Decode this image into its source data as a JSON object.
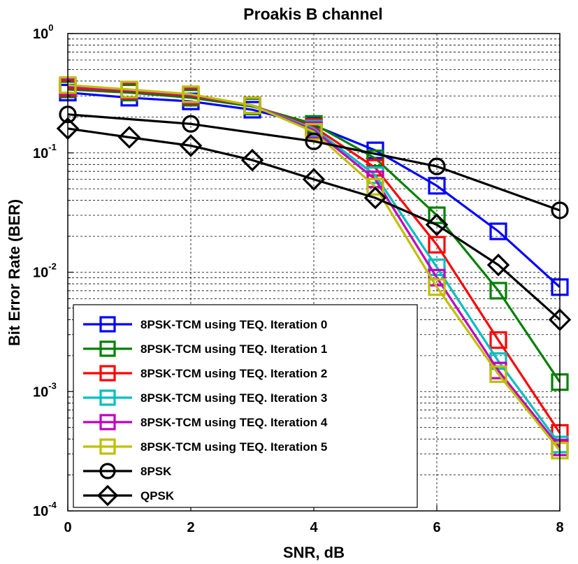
{
  "chart_data": {
    "type": "line",
    "title": "Proakis B channel",
    "xlabel": "SNR, dB",
    "ylabel": "Bit Error Rate (BER)",
    "xlim": [
      0,
      8
    ],
    "ylim": [
      0.0001,
      1
    ],
    "yscale": "log",
    "grid": true,
    "legend_position": "bottom-left",
    "x_ticks": [
      0,
      2,
      4,
      6,
      8
    ],
    "x_tick_labels": [
      "0",
      "2",
      "4",
      "6",
      "8"
    ],
    "y_ticks": [
      {
        "base": "10",
        "exp": "0",
        "value": 1
      },
      {
        "base": "10",
        "exp": "-1",
        "value": 0.1
      },
      {
        "base": "10",
        "exp": "-2",
        "value": 0.01
      },
      {
        "base": "10",
        "exp": "-3",
        "value": 0.001
      },
      {
        "base": "10",
        "exp": "-4",
        "value": 0.0001
      }
    ],
    "series": [
      {
        "name": "8PSK-TCM using TEQ. Iteration 0",
        "color": "#0000ff",
        "marker": "square",
        "x": [
          0,
          1,
          2,
          3,
          4,
          5,
          6,
          7,
          8
        ],
        "y": [
          0.32,
          0.29,
          0.27,
          0.23,
          0.17,
          0.105,
          0.053,
          0.022,
          0.0075
        ]
      },
      {
        "name": "8PSK-TCM using TEQ. Iteration 1",
        "color": "#008000",
        "marker": "square",
        "x": [
          0,
          1,
          2,
          3,
          4,
          5,
          6,
          7,
          8
        ],
        "y": [
          0.34,
          0.32,
          0.29,
          0.245,
          0.175,
          0.09,
          0.03,
          0.007,
          0.0012
        ]
      },
      {
        "name": "8PSK-TCM using TEQ. Iteration 2",
        "color": "#ff0000",
        "marker": "square",
        "x": [
          0,
          1,
          2,
          3,
          4,
          5,
          6,
          7,
          8
        ],
        "y": [
          0.35,
          0.33,
          0.3,
          0.25,
          0.165,
          0.075,
          0.017,
          0.0027,
          0.00045
        ]
      },
      {
        "name": "8PSK-TCM using TEQ. Iteration 3",
        "color": "#00bfbf",
        "marker": "square",
        "x": [
          0,
          1,
          2,
          3,
          4,
          5,
          6,
          7,
          8
        ],
        "y": [
          0.36,
          0.335,
          0.305,
          0.25,
          0.16,
          0.065,
          0.011,
          0.0018,
          0.00036
        ]
      },
      {
        "name": "8PSK-TCM using TEQ. Iteration 4",
        "color": "#bf00bf",
        "marker": "square",
        "x": [
          0,
          1,
          2,
          3,
          4,
          5,
          6,
          7,
          8
        ],
        "y": [
          0.36,
          0.335,
          0.305,
          0.25,
          0.155,
          0.06,
          0.009,
          0.0015,
          0.00034
        ]
      },
      {
        "name": "8PSK-TCM using TEQ. Iteration 5",
        "color": "#bfbf00",
        "marker": "square",
        "x": [
          0,
          1,
          2,
          3,
          4,
          5,
          6,
          7,
          8
        ],
        "y": [
          0.37,
          0.34,
          0.31,
          0.25,
          0.15,
          0.052,
          0.0075,
          0.0014,
          0.00032
        ]
      },
      {
        "name": "8PSK",
        "color": "#000000",
        "marker": "circle",
        "x": [
          0,
          2,
          4,
          6,
          8
        ],
        "y": [
          0.21,
          0.175,
          0.125,
          0.077,
          0.033
        ]
      },
      {
        "name": "QPSK",
        "color": "#000000",
        "marker": "diamond",
        "x": [
          0,
          1,
          2,
          3,
          4,
          5,
          6,
          7,
          8
        ],
        "y": [
          0.16,
          0.135,
          0.115,
          0.087,
          0.06,
          0.042,
          0.025,
          0.0115,
          0.004
        ]
      }
    ]
  }
}
